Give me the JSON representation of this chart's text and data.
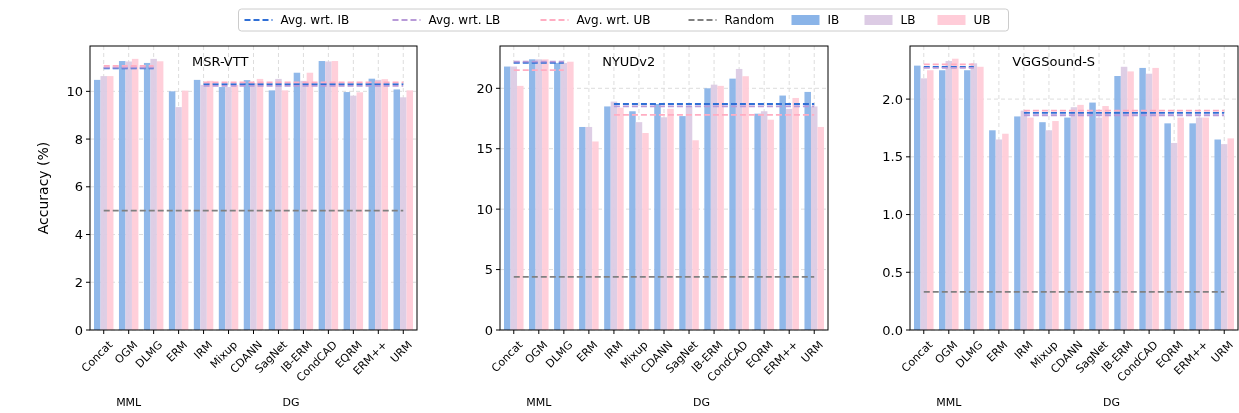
{
  "chart_data": [
    {
      "type": "bar",
      "title": "MSR-VTT",
      "ylabel": "Accuracy (%)",
      "categories": [
        "Concat",
        "OGM",
        "DLMG",
        "ERM",
        "IRM",
        "Mixup",
        "CDANN",
        "SagNet",
        "IB-ERM",
        "CondCAD",
        "EQRM",
        "ERM++",
        "URM"
      ],
      "ylim": [
        0,
        11.9
      ],
      "yticks": [
        0,
        2,
        4,
        6,
        8,
        10
      ],
      "grid": true,
      "legend": "top",
      "annotations": [
        "MML",
        "DG"
      ],
      "series": [
        {
          "name": "Avg. wrt. IB",
          "type": "line",
          "color": "#2f6fd6",
          "line_style": "dashed",
          "marker": "none",
          "values": [
            10.96,
            10.96,
            10.96,
            null,
            10.3,
            10.3,
            10.3,
            10.3,
            10.3,
            10.3,
            10.3,
            10.3,
            10.3
          ]
        },
        {
          "name": "Avg. wrt. LB",
          "type": "line",
          "color": "#b89ad8",
          "line_style": "dashed",
          "marker": "none",
          "values": [
            11.0,
            11.0,
            11.0,
            null,
            10.23,
            10.23,
            10.23,
            10.23,
            10.23,
            10.23,
            10.23,
            10.23,
            10.23
          ]
        },
        {
          "name": "Avg. wrt. UB",
          "type": "line",
          "color": "#ffadc2",
          "line_style": "dashed",
          "marker": "none",
          "values": [
            11.07,
            11.07,
            11.07,
            null,
            10.38,
            10.38,
            10.38,
            10.38,
            10.38,
            10.38,
            10.38,
            10.38,
            10.38
          ]
        },
        {
          "name": "Random",
          "type": "line",
          "color": "#808080",
          "line_style": "dashed",
          "marker": "none",
          "values": [
            5,
            5,
            5,
            5,
            5,
            5,
            5,
            5,
            5,
            5,
            5,
            5,
            5
          ]
        },
        {
          "name": "IB",
          "color": "#8ab4e8",
          "values": [
            10.48,
            11.27,
            11.19,
            10.0,
            10.48,
            10.18,
            10.47,
            10.04,
            10.78,
            11.27,
            9.97,
            10.53,
            10.08
          ]
        },
        {
          "name": "LB",
          "color": "#dccbe4",
          "values": [
            10.64,
            11.25,
            11.36,
            9.34,
            10.27,
            10.18,
            10.34,
            10.52,
            10.44,
            11.25,
            9.82,
            10.48,
            9.75
          ]
        },
        {
          "name": "UB",
          "color": "#ffccd8",
          "values": [
            10.64,
            11.36,
            11.26,
            10.03,
            10.44,
            10.27,
            10.52,
            10.04,
            10.78,
            11.27,
            9.96,
            10.51,
            10.04
          ]
        }
      ]
    },
    {
      "type": "bar",
      "title": "NYUDv2",
      "categories": [
        "Concat",
        "OGM",
        "DLMG",
        "ERM",
        "IRM",
        "Mixup",
        "CDANN",
        "SagNet",
        "IB-ERM",
        "CondCAD",
        "EQRM",
        "ERM++",
        "URM"
      ],
      "ylim": [
        0,
        23.5
      ],
      "yticks": [
        0,
        5,
        10,
        15,
        20
      ],
      "grid": true,
      "annotations": [
        "MML",
        "DG"
      ],
      "series": [
        {
          "type": "line",
          "color": "#2f6fd6",
          "line_style": "dashed",
          "marker": "none",
          "values": [
            22.1,
            22.1,
            22.1,
            null,
            18.7,
            18.7,
            18.7,
            18.7,
            18.7,
            18.7,
            18.7,
            18.7,
            18.7
          ]
        },
        {
          "type": "line",
          "color": "#b89ad8",
          "line_style": "dashed",
          "marker": "none",
          "values": [
            22.2,
            22.2,
            22.2,
            null,
            18.5,
            18.5,
            18.5,
            18.5,
            18.5,
            18.5,
            18.5,
            18.5,
            18.5
          ]
        },
        {
          "type": "line",
          "color": "#ffadc2",
          "line_style": "dashed",
          "marker": "none",
          "values": [
            21.5,
            21.5,
            21.5,
            null,
            17.8,
            17.8,
            17.8,
            17.8,
            17.8,
            17.8,
            17.8,
            17.8,
            17.8
          ]
        },
        {
          "type": "line",
          "color": "#808080",
          "line_style": "dashed",
          "marker": "none",
          "values": [
            4.4,
            4.4,
            4.4,
            4.4,
            4.4,
            4.4,
            4.4,
            4.4,
            4.4,
            4.4,
            4.4,
            4.4,
            4.4
          ]
        },
        {
          "color": "#8ab4e8",
          "values": [
            21.8,
            22.4,
            22.1,
            16.8,
            18.5,
            18.1,
            18.7,
            17.7,
            20.0,
            20.8,
            17.9,
            19.4,
            19.7
          ]
        },
        {
          "color": "#dccbe4",
          "values": [
            21.8,
            22.4,
            22.1,
            16.8,
            18.9,
            17.2,
            17.6,
            18.5,
            20.3,
            21.6,
            18.1,
            18.3,
            18.5
          ]
        },
        {
          "color": "#ffccd8",
          "values": [
            20.2,
            22.4,
            22.2,
            15.6,
            18.4,
            16.3,
            18.3,
            15.7,
            20.2,
            21.0,
            17.4,
            19.2,
            16.8
          ]
        }
      ]
    },
    {
      "type": "bar",
      "title": "VGGSound-S",
      "categories": [
        "Concat",
        "OGM",
        "DLMG",
        "ERM",
        "IRM",
        "Mixup",
        "CDANN",
        "SagNet",
        "IB-ERM",
        "CondCAD",
        "EQRM",
        "ERM++",
        "URM"
      ],
      "ylim": [
        0,
        2.46
      ],
      "yticks": [
        {
          "value": 0,
          "label": "0.0"
        },
        {
          "value": 0.5,
          "label": "0.5"
        },
        {
          "value": 1,
          "label": "1.0"
        },
        {
          "value": 1.5,
          "label": "1.5"
        },
        {
          "value": 2,
          "label": "2.0"
        }
      ],
      "grid": true,
      "annotations": [
        "MML",
        "DG"
      ],
      "series": [
        {
          "type": "line",
          "color": "#2f6fd6",
          "line_style": "dashed",
          "marker": "none",
          "values": [
            2.28,
            2.28,
            2.28,
            null,
            1.88,
            1.88,
            1.88,
            1.88,
            1.88,
            1.88,
            1.88,
            1.88,
            1.88
          ]
        },
        {
          "type": "line",
          "color": "#b89ad8",
          "line_style": "dashed",
          "marker": "none",
          "values": [
            2.27,
            2.27,
            2.27,
            null,
            1.86,
            1.86,
            1.86,
            1.86,
            1.86,
            1.86,
            1.86,
            1.86,
            1.86
          ]
        },
        {
          "type": "line",
          "color": "#ffadc2",
          "line_style": "dashed",
          "marker": "none",
          "values": [
            2.3,
            2.3,
            2.3,
            null,
            1.9,
            1.9,
            1.9,
            1.9,
            1.9,
            1.9,
            1.9,
            1.9,
            1.9
          ]
        },
        {
          "type": "line",
          "color": "#808080",
          "line_style": "dashed",
          "marker": "none",
          "values": [
            0.33,
            0.33,
            0.33,
            0.33,
            0.33,
            0.33,
            0.33,
            0.33,
            0.33,
            0.33,
            0.33,
            0.33,
            0.33
          ]
        },
        {
          "color": "#8ab4e8",
          "values": [
            2.29,
            2.25,
            2.25,
            1.73,
            1.85,
            1.8,
            1.84,
            1.97,
            2.2,
            2.27,
            1.79,
            1.79,
            1.65
          ]
        },
        {
          "color": "#dccbe4",
          "values": [
            2.18,
            2.33,
            2.31,
            1.65,
            1.9,
            1.73,
            1.93,
            1.84,
            2.28,
            2.22,
            1.62,
            1.84,
            1.61
          ]
        },
        {
          "color": "#ffccd8",
          "values": [
            2.25,
            2.35,
            2.28,
            1.7,
            1.84,
            1.81,
            1.95,
            1.94,
            2.24,
            2.27,
            1.84,
            1.84,
            1.66
          ]
        }
      ]
    }
  ]
}
